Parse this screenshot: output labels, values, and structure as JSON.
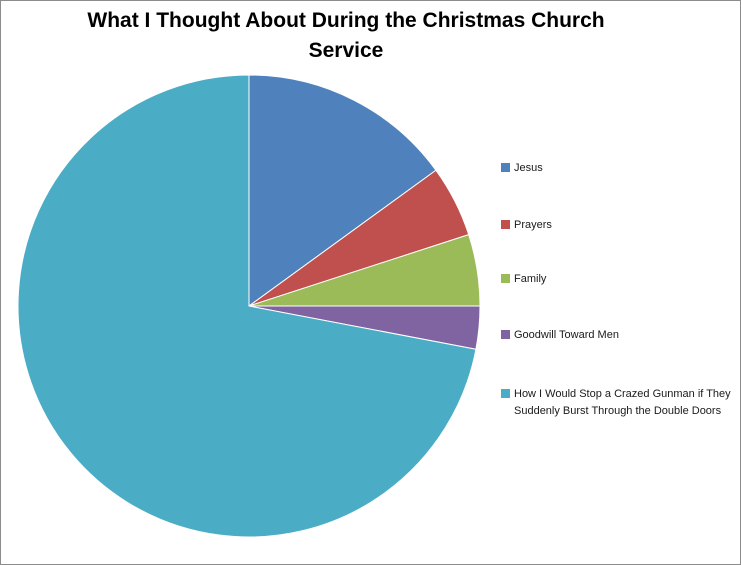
{
  "window": {
    "background": "#FFFFFF",
    "border_color": "#8C8C8C"
  },
  "chart_data": {
    "type": "pie",
    "title": "What I Thought About During the Christmas Church Service",
    "title_lines": [
      "What I Thought About During the Christmas Church",
      "Service"
    ],
    "categories": [
      "Jesus",
      "Prayers",
      "Family",
      "Goodwill Toward Men",
      "How I Would Stop a Crazed Gunman if They Suddenly Burst Through the Double Doors"
    ],
    "values": [
      15,
      5,
      5,
      3,
      72
    ],
    "unit": "percent",
    "colors": [
      "#4F81BD",
      "#C0504D",
      "#9BBB59",
      "#8064A2",
      "#4BACC6"
    ],
    "slice_border_color": "#FFFFFF",
    "start_angle_deg": 0,
    "direction": "clockwise",
    "legend_position": "right",
    "title_color": "#000000",
    "legend_text_color": "#1A1A1A"
  }
}
